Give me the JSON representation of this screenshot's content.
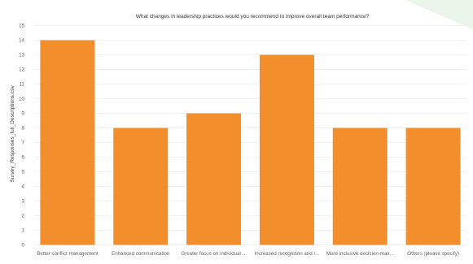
{
  "chart_data": {
    "type": "bar",
    "title": "What changes in leadership practices would you recommend to improve overall team performance?",
    "xlabel": "",
    "ylabel": "Survey_Responses_full_Descriptions.csv",
    "categories": [
      "Better conflict management",
      "Enhanced communication",
      "Greater focus on individual ...",
      "Increased recognition and r...",
      "More inclusive decision-mak...",
      "Others (please specify)"
    ],
    "values": [
      14,
      8,
      9,
      13,
      8,
      8
    ],
    "ylim": [
      0,
      15
    ],
    "yticks": [
      "0",
      "1",
      "2",
      "3",
      "4",
      "5",
      "6",
      "7",
      "8",
      "9",
      "10",
      "11",
      "12",
      "13",
      "14",
      "15"
    ],
    "grid": true,
    "legend": "none",
    "colors": {
      "bar": "#f28e2b",
      "background": "#ffffff",
      "gridline": "#ececec",
      "accent_decoration": "#eaf6ea"
    }
  }
}
